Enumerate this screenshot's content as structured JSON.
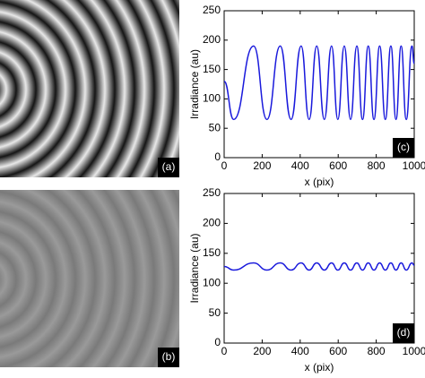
{
  "images": [
    {
      "label": "(a)"
    },
    {
      "label": "(b)"
    }
  ],
  "chart_data": [
    {
      "type": "line",
      "annotation": "(c)",
      "ylabel": "Irradiance (au)",
      "xlabel": "x (pix)",
      "color": "#1a1adc",
      "x": [
        0,
        50,
        155,
        225,
        295,
        352,
        405,
        447,
        487,
        527,
        565,
        598,
        632,
        665,
        698,
        728,
        758,
        788,
        818,
        848,
        877,
        904,
        931,
        958,
        988,
        1000
      ],
      "values": [
        130,
        65,
        190,
        65,
        190,
        65,
        190,
        65,
        190,
        65,
        190,
        65,
        190,
        65,
        190,
        65,
        190,
        65,
        190,
        65,
        190,
        65,
        190,
        65,
        190,
        160
      ],
      "xlim": [
        0,
        1000
      ],
      "xticks": [
        0,
        200,
        400,
        600,
        800,
        1000
      ],
      "ylim": [
        0,
        250
      ],
      "yticks": [
        0,
        50,
        100,
        150,
        200,
        250
      ]
    },
    {
      "type": "line",
      "annotation": "(d)",
      "ylabel": "Irradiance (au)",
      "xlabel": "x (pix)",
      "color": "#1a1adc",
      "x": [
        0,
        50,
        155,
        225,
        295,
        352,
        405,
        447,
        487,
        527,
        565,
        598,
        632,
        665,
        698,
        728,
        758,
        788,
        818,
        848,
        877,
        904,
        931,
        958,
        988,
        1000
      ],
      "values": [
        128,
        122,
        134,
        122,
        134,
        122,
        134,
        122,
        134,
        122,
        134,
        122,
        134,
        122,
        134,
        122,
        134,
        122,
        134,
        122,
        134,
        122,
        134,
        122,
        134,
        130
      ],
      "xlim": [
        0,
        1000
      ],
      "xticks": [
        0,
        200,
        400,
        600,
        800,
        1000
      ],
      "ylim": [
        0,
        250
      ],
      "yticks": [
        0,
        50,
        100,
        150,
        200,
        250
      ]
    }
  ]
}
